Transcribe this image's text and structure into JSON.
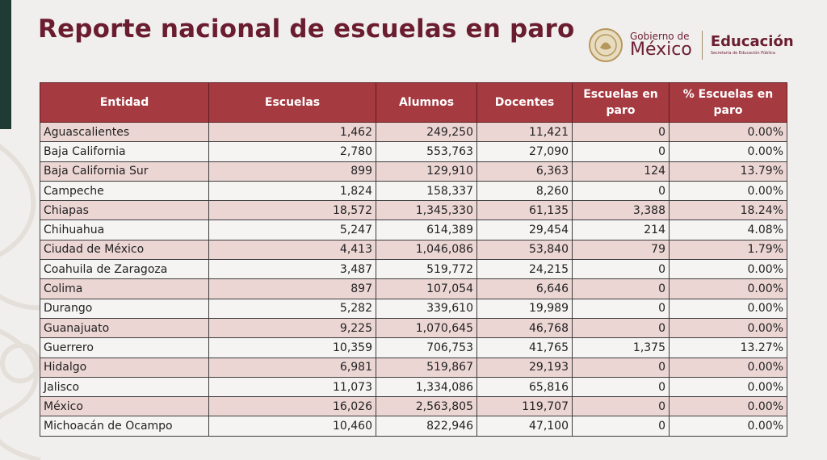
{
  "title": "Reporte nacional de escuelas en paro",
  "logo": {
    "gobierno_line1": "Gobierno de",
    "gobierno_line2": "México",
    "dependencia": "Educación",
    "dependencia_sub": "Secretaría de Educación Pública"
  },
  "table": {
    "headers": [
      "Entidad",
      "Escuelas",
      "Alumnos",
      "Docentes",
      "Escuelas en paro",
      "% Escuelas en paro"
    ],
    "rows": [
      [
        "Aguascalientes",
        "1,462",
        "249,250",
        "11,421",
        "0",
        "0.00%"
      ],
      [
        "Baja California",
        "2,780",
        "553,763",
        "27,090",
        "0",
        "0.00%"
      ],
      [
        "Baja California Sur",
        "899",
        "129,910",
        "6,363",
        "124",
        "13.79%"
      ],
      [
        "Campeche",
        "1,824",
        "158,337",
        "8,260",
        "0",
        "0.00%"
      ],
      [
        "Chiapas",
        "18,572",
        "1,345,330",
        "61,135",
        "3,388",
        "18.24%"
      ],
      [
        "Chihuahua",
        "5,247",
        "614,389",
        "29,454",
        "214",
        "4.08%"
      ],
      [
        "Ciudad de México",
        "4,413",
        "1,046,086",
        "53,840",
        "79",
        "1.79%"
      ],
      [
        "Coahuila de Zaragoza",
        "3,487",
        "519,772",
        "24,215",
        "0",
        "0.00%"
      ],
      [
        "Colima",
        "897",
        "107,054",
        "6,646",
        "0",
        "0.00%"
      ],
      [
        "Durango",
        "5,282",
        "339,610",
        "19,989",
        "0",
        "0.00%"
      ],
      [
        "Guanajuato",
        "9,225",
        "1,070,645",
        "46,768",
        "0",
        "0.00%"
      ],
      [
        "Guerrero",
        "10,359",
        "706,753",
        "41,765",
        "1,375",
        "13.27%"
      ],
      [
        "Hidalgo",
        "6,981",
        "519,867",
        "29,193",
        "0",
        "0.00%"
      ],
      [
        "Jalisco",
        "11,073",
        "1,334,086",
        "65,816",
        "0",
        "0.00%"
      ],
      [
        "México",
        "16,026",
        "2,563,805",
        "119,707",
        "0",
        "0.00%"
      ],
      [
        "Michoacán de Ocampo",
        "10,460",
        "822,946",
        "47,100",
        "0",
        "0.00%"
      ]
    ]
  },
  "colors": {
    "header_bg": "#a53a40",
    "row_shaded": "#ecd6d4",
    "row_plain": "#f6f4f3",
    "title": "#6b1d30"
  }
}
